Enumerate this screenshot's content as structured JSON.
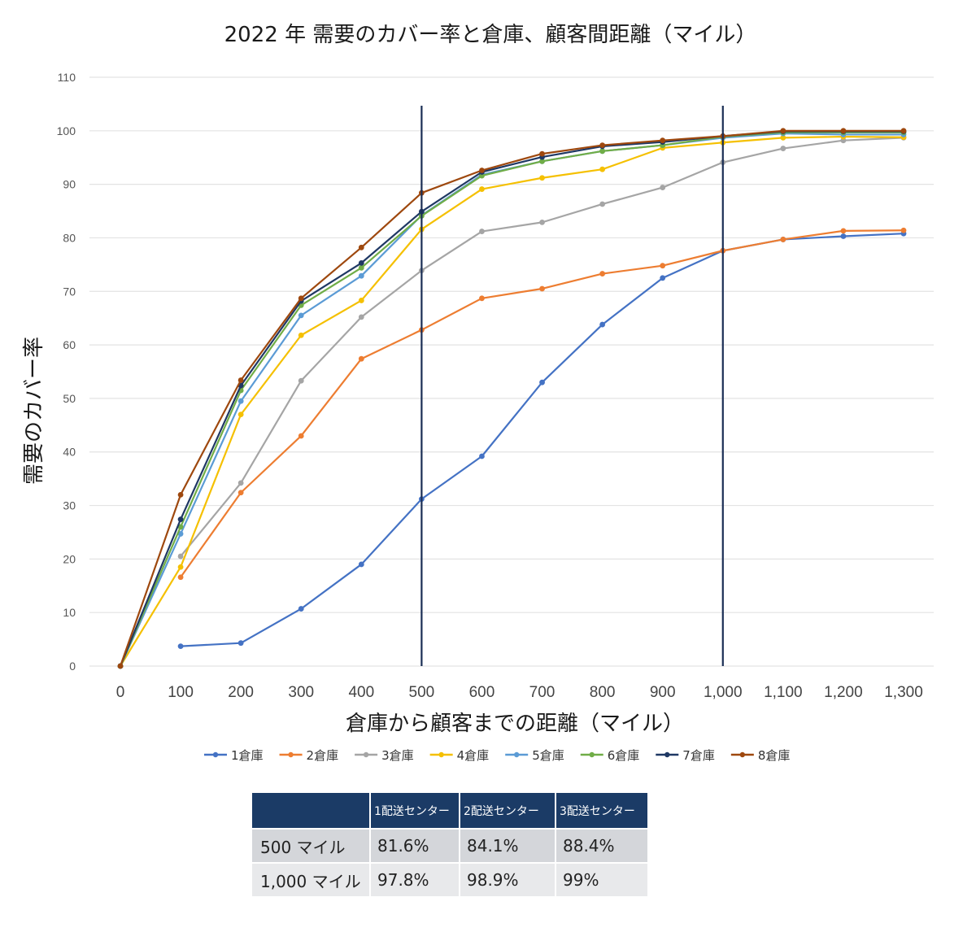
{
  "chart_data": {
    "type": "line",
    "title": "2022 年 需要のカバー率と倉庫、顧客間距離（マイル）",
    "xlabel": "倉庫から顧客までの距離（マイル）",
    "ylabel": "需要のカバー率",
    "x_tick_labels": [
      "0",
      "100",
      "200",
      "300",
      "400",
      "500",
      "600",
      "700",
      "800",
      "900",
      "1,000",
      "1,100",
      "1,200",
      "1,300"
    ],
    "y_tick_labels": [
      "0",
      "10",
      "20",
      "30",
      "40",
      "50",
      "60",
      "70",
      "80",
      "90",
      "100",
      "110"
    ],
    "xlim": [
      0,
      1300
    ],
    "ylim": [
      0,
      110
    ],
    "grid": true,
    "legend_position": "bottom",
    "reference_lines_x": [
      500,
      1000
    ],
    "reference_line_color": "#1a2e55",
    "series": [
      {
        "name": "1倉庫",
        "color": "#4472c4",
        "x": [
          100,
          200,
          300,
          400,
          500,
          600,
          700,
          800,
          900,
          1000,
          1100,
          1200,
          1300
        ],
        "y": [
          3.7,
          4.3,
          10.7,
          19,
          31.2,
          39.2,
          53,
          63.8,
          72.5,
          77.6,
          79.7,
          80.3,
          80.8
        ]
      },
      {
        "name": "2倉庫",
        "color": "#ed7d31",
        "x": [
          100,
          200,
          300,
          400,
          500,
          600,
          700,
          800,
          900,
          1000,
          1100,
          1200,
          1300
        ],
        "y": [
          16.6,
          32.4,
          43,
          57.4,
          62.8,
          68.7,
          70.5,
          73.3,
          74.8,
          77.6,
          79.7,
          81.3,
          81.4
        ]
      },
      {
        "name": "3倉庫",
        "color": "#a5a5a5",
        "x": [
          100,
          200,
          300,
          400,
          500,
          600,
          700,
          800,
          900,
          1000,
          1100,
          1200,
          1300
        ],
        "y": [
          20.5,
          34.2,
          53.3,
          65.2,
          73.9,
          81.2,
          82.9,
          86.3,
          89.4,
          94.1,
          96.7,
          98.2,
          98.7
        ]
      },
      {
        "name": "4倉庫",
        "color": "#f5c000",
        "x": [
          0,
          100,
          200,
          300,
          400,
          500,
          600,
          700,
          800,
          900,
          1000,
          1100,
          1200,
          1300
        ],
        "y": [
          0,
          18.5,
          47,
          61.8,
          68.3,
          81.6,
          89.1,
          91.2,
          92.8,
          96.8,
          97.8,
          98.7,
          98.9,
          98.8
        ]
      },
      {
        "name": "5倉庫",
        "color": "#5b9bd5",
        "x": [
          0,
          100,
          200,
          300,
          400,
          500,
          600,
          700,
          800,
          900,
          1000,
          1100,
          1200,
          1300
        ],
        "y": [
          0,
          24.7,
          49.5,
          65.5,
          72.9,
          84.2,
          91.8,
          94.3,
          96.2,
          97.3,
          98.7,
          99.5,
          99.3,
          99.3
        ]
      },
      {
        "name": "6倉庫",
        "color": "#70ad47",
        "x": [
          0,
          100,
          200,
          300,
          400,
          500,
          600,
          700,
          800,
          900,
          1000,
          1100,
          1200,
          1300
        ],
        "y": [
          0,
          26,
          51.5,
          67.4,
          74.4,
          84.1,
          91.6,
          94.3,
          96.2,
          97.3,
          98.9,
          99.7,
          99.7,
          99.7
        ]
      },
      {
        "name": "7倉庫",
        "color": "#1f3864",
        "x": [
          0,
          100,
          200,
          300,
          400,
          500,
          600,
          700,
          800,
          900,
          1000,
          1100,
          1200,
          1300
        ],
        "y": [
          0,
          27.4,
          52.4,
          68.2,
          75.3,
          84.9,
          92.3,
          95.1,
          97.1,
          97.9,
          99,
          99.9,
          99.9,
          99.9
        ]
      },
      {
        "name": "8倉庫",
        "color": "#9e480e",
        "x": [
          0,
          100,
          200,
          300,
          400,
          500,
          600,
          700,
          800,
          900,
          1000,
          1100,
          1200,
          1300
        ],
        "y": [
          0,
          32,
          53.4,
          68.7,
          78.2,
          88.4,
          92.6,
          95.7,
          97.3,
          98.2,
          99,
          100,
          100,
          100
        ]
      }
    ]
  },
  "table": {
    "headers": [
      "",
      "1配送センター",
      "2配送センター",
      "3配送センター"
    ],
    "rows": [
      {
        "label": "500 マイル",
        "values": [
          "81.6%",
          "84.1%",
          "88.4%"
        ]
      },
      {
        "label": "1,000 マイル",
        "values": [
          "97.8%",
          "98.9%",
          "99%"
        ]
      }
    ]
  }
}
